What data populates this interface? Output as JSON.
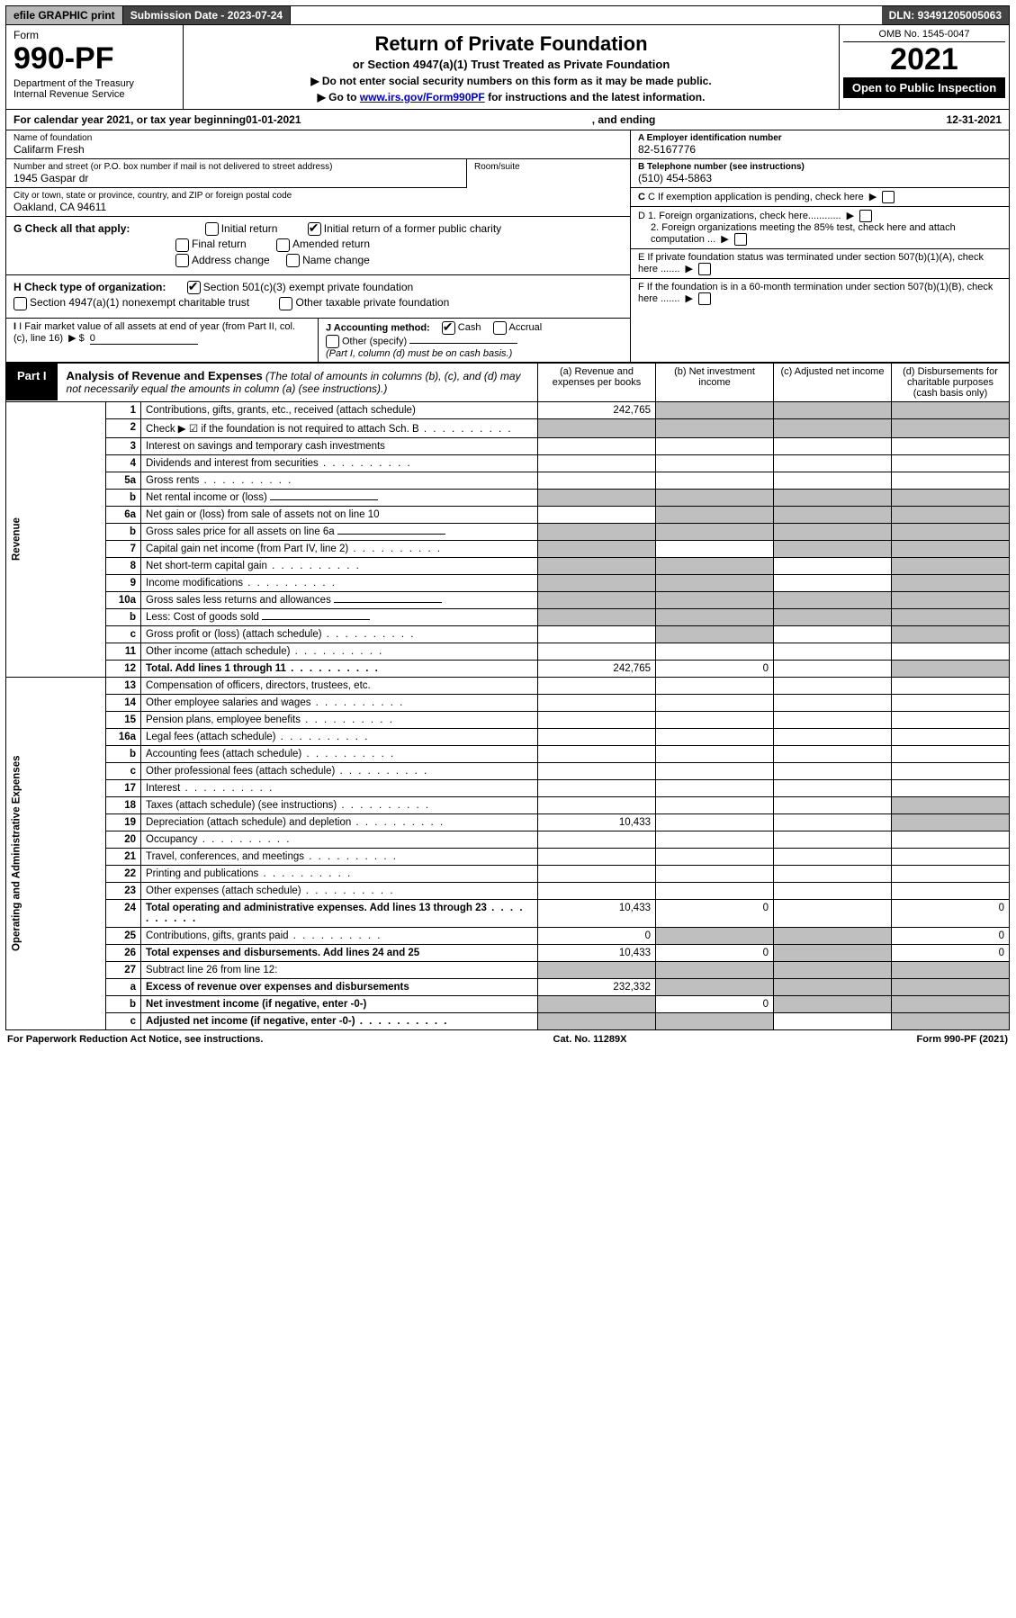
{
  "topbar": {
    "efile": "efile GRAPHIC print",
    "submission_label": "Submission Date - ",
    "submission_date": "2023-07-24",
    "dln_label": "DLN: ",
    "dln": "93491205005063"
  },
  "header": {
    "form_word": "Form",
    "form_no": "990-PF",
    "dept": "Department of the Treasury",
    "irs": "Internal Revenue Service",
    "title": "Return of Private Foundation",
    "subtitle": "or Section 4947(a)(1) Trust Treated as Private Foundation",
    "instr1": "▶ Do not enter social security numbers on this form as it may be made public.",
    "instr2_pre": "▶ Go to ",
    "instr2_link": "www.irs.gov/Form990PF",
    "instr2_post": " for instructions and the latest information.",
    "omb": "OMB No. 1545-0047",
    "year": "2021",
    "open": "Open to Public Inspection"
  },
  "calendar": {
    "pre": "For calendar year 2021, or tax year beginning ",
    "begin": "01-01-2021",
    "mid": ", and ending ",
    "end": "12-31-2021"
  },
  "entity": {
    "name_lbl": "Name of foundation",
    "name": "Califarm Fresh",
    "addr_lbl": "Number and street (or P.O. box number if mail is not delivered to street address)",
    "room_lbl": "Room/suite",
    "street": "1945 Gaspar dr",
    "city_lbl": "City or town, state or province, country, and ZIP or foreign postal code",
    "city": "Oakland, CA  94611",
    "ein_lbl": "A Employer identification number",
    "ein": "82-5167776",
    "tel_lbl": "B Telephone number (see instructions)",
    "tel": "(510) 454-5863",
    "c_lbl": "C If exemption application is pending, check here",
    "d1": "D 1. Foreign organizations, check here............",
    "d2": "2. Foreign organizations meeting the 85% test, check here and attach computation ...",
    "e": "E  If private foundation status was terminated under section 507(b)(1)(A), check here .......",
    "f": "F  If the foundation is in a 60-month termination under section 507(b)(1)(B), check here .......",
    "g_lbl": "G Check all that apply:",
    "g_opts": [
      "Initial return",
      "Initial return of a former public charity",
      "Final return",
      "Amended return",
      "Address change",
      "Name change"
    ],
    "h_lbl": "H Check type of organization:",
    "h1": "Section 501(c)(3) exempt private foundation",
    "h2": "Section 4947(a)(1) nonexempt charitable trust",
    "h3": "Other taxable private foundation",
    "i_lbl": "I Fair market value of all assets at end of year (from Part II, col. (c), line 16)",
    "i_val": "0",
    "j_lbl": "J Accounting method:",
    "j_cash": "Cash",
    "j_accr": "Accrual",
    "j_other": "Other (specify)",
    "j_note": "(Part I, column (d) must be on cash basis.)"
  },
  "part1": {
    "tab": "Part I",
    "title": "Analysis of Revenue and Expenses",
    "note": " (The total of amounts in columns (b), (c), and (d) may not necessarily equal the amounts in column (a) (see instructions).)",
    "col_a": "(a)   Revenue and expenses per books",
    "col_b": "(b)   Net investment income",
    "col_c": "(c)   Adjusted net income",
    "col_d": "(d)   Disbursements for charitable purposes (cash basis only)",
    "rev_label": "Revenue",
    "exp_label": "Operating and Administrative Expenses"
  },
  "rows": [
    {
      "n": "1",
      "d": "Contributions, gifts, grants, etc., received (attach schedule)",
      "a": "242,765",
      "shade": [
        "b",
        "c",
        "d"
      ]
    },
    {
      "n": "2",
      "d": "Check ▶ ☑ if the foundation is not required to attach Sch. B",
      "dots": true,
      "shade": [
        "a",
        "b",
        "c",
        "d"
      ]
    },
    {
      "n": "3",
      "d": "Interest on savings and temporary cash investments"
    },
    {
      "n": "4",
      "d": "Dividends and interest from securities",
      "dots": true
    },
    {
      "n": "5a",
      "d": "Gross rents",
      "dots": true
    },
    {
      "n": "b",
      "d": "Net rental income or (loss)",
      "uline": true,
      "shade": [
        "a",
        "b",
        "c",
        "d"
      ]
    },
    {
      "n": "6a",
      "d": "Net gain or (loss) from sale of assets not on line 10",
      "shade": [
        "b",
        "c",
        "d"
      ]
    },
    {
      "n": "b",
      "d": "Gross sales price for all assets on line 6a",
      "uline": true,
      "shade": [
        "a",
        "b",
        "c",
        "d"
      ]
    },
    {
      "n": "7",
      "d": "Capital gain net income (from Part IV, line 2)",
      "dots": true,
      "shade": [
        "a",
        "c",
        "d"
      ]
    },
    {
      "n": "8",
      "d": "Net short-term capital gain",
      "dots": true,
      "shade": [
        "a",
        "b",
        "d"
      ]
    },
    {
      "n": "9",
      "d": "Income modifications",
      "dots": true,
      "shade": [
        "a",
        "b",
        "d"
      ]
    },
    {
      "n": "10a",
      "d": "Gross sales less returns and allowances",
      "uline": true,
      "shade": [
        "a",
        "b",
        "c",
        "d"
      ]
    },
    {
      "n": "b",
      "d": "Less: Cost of goods sold",
      "dots": true,
      "uline": true,
      "shade": [
        "a",
        "b",
        "c",
        "d"
      ]
    },
    {
      "n": "c",
      "d": "Gross profit or (loss) (attach schedule)",
      "dots": true,
      "shade": [
        "b",
        "d"
      ]
    },
    {
      "n": "11",
      "d": "Other income (attach schedule)",
      "dots": true
    },
    {
      "n": "12",
      "d": "Total. Add lines 1 through 11",
      "dots": true,
      "bold": true,
      "a": "242,765",
      "b": "0",
      "shade": [
        "d"
      ]
    },
    {
      "n": "13",
      "d": "Compensation of officers, directors, trustees, etc."
    },
    {
      "n": "14",
      "d": "Other employee salaries and wages",
      "dots": true
    },
    {
      "n": "15",
      "d": "Pension plans, employee benefits",
      "dots": true
    },
    {
      "n": "16a",
      "d": "Legal fees (attach schedule)",
      "dots": true
    },
    {
      "n": "b",
      "d": "Accounting fees (attach schedule)",
      "dots": true
    },
    {
      "n": "c",
      "d": "Other professional fees (attach schedule)",
      "dots": true
    },
    {
      "n": "17",
      "d": "Interest",
      "dots": true
    },
    {
      "n": "18",
      "d": "Taxes (attach schedule) (see instructions)",
      "dots": true,
      "shade": [
        "d"
      ]
    },
    {
      "n": "19",
      "d": "Depreciation (attach schedule) and depletion",
      "dots": true,
      "a": "10,433",
      "shade": [
        "d"
      ]
    },
    {
      "n": "20",
      "d": "Occupancy",
      "dots": true
    },
    {
      "n": "21",
      "d": "Travel, conferences, and meetings",
      "dots": true
    },
    {
      "n": "22",
      "d": "Printing and publications",
      "dots": true
    },
    {
      "n": "23",
      "d": "Other expenses (attach schedule)",
      "dots": true
    },
    {
      "n": "24",
      "d": "Total operating and administrative expenses. Add lines 13 through 23",
      "dots": true,
      "bold": true,
      "a": "10,433",
      "b": "0",
      "dv": "0"
    },
    {
      "n": "25",
      "d": "Contributions, gifts, grants paid",
      "dots": true,
      "a": "0",
      "shade": [
        "b",
        "c"
      ],
      "dv": "0"
    },
    {
      "n": "26",
      "d": "Total expenses and disbursements. Add lines 24 and 25",
      "bold": true,
      "a": "10,433",
      "b": "0",
      "dv": "0",
      "shade": [
        "c"
      ]
    },
    {
      "n": "27",
      "d": "Subtract line 26 from line 12:",
      "shade": [
        "a",
        "b",
        "c",
        "d"
      ]
    },
    {
      "n": "a",
      "d": "Excess of revenue over expenses and disbursements",
      "bold": true,
      "a": "232,332",
      "shade": [
        "b",
        "c",
        "d"
      ]
    },
    {
      "n": "b",
      "d": "Net investment income (if negative, enter -0-)",
      "bold": true,
      "b": "0",
      "shade": [
        "a",
        "c",
        "d"
      ]
    },
    {
      "n": "c",
      "d": "Adjusted net income (if negative, enter -0-)",
      "bold": true,
      "dots": true,
      "shade": [
        "a",
        "b",
        "d"
      ]
    }
  ],
  "footer": {
    "left": "For Paperwork Reduction Act Notice, see instructions.",
    "mid": "Cat. No. 11289X",
    "right": "Form 990-PF (2021)"
  }
}
